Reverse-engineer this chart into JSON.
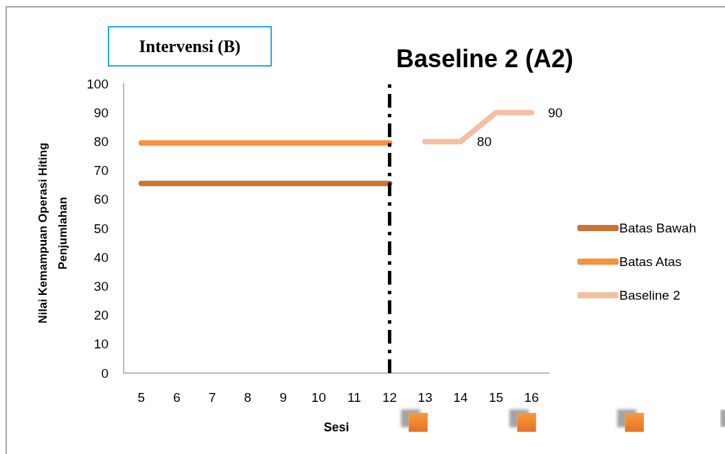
{
  "chart_data": {
    "type": "line",
    "categories": [
      "5",
      "6",
      "7",
      "8",
      "9",
      "10",
      "11",
      "12",
      "13",
      "14",
      "15",
      "16"
    ],
    "xlabel": "Sesi",
    "ylabel": "Nilai Kemampuan Operasi Hiting Penjumlahan",
    "ylim": [
      0,
      100
    ],
    "yticks": [
      0,
      10,
      20,
      30,
      40,
      50,
      60,
      70,
      80,
      90,
      100
    ],
    "grid": false,
    "legend": "right",
    "marker": "none",
    "line_style": "solid",
    "series": [
      {
        "name": "Batas Bawah",
        "color": "#c97532",
        "values": [
          65.5,
          65.5,
          65.5,
          65.5,
          65.5,
          65.5,
          65.5,
          65.5,
          null,
          null,
          null,
          null
        ]
      },
      {
        "name": "Batas Atas",
        "color": "#f69240",
        "values": [
          79.5,
          79.5,
          79.5,
          79.5,
          79.5,
          79.5,
          79.5,
          79.5,
          null,
          null,
          null,
          null
        ]
      },
      {
        "name": "Baseline 2",
        "color": "#f5bfa2",
        "values": [
          null,
          null,
          null,
          null,
          null,
          null,
          null,
          null,
          80,
          80,
          90,
          90
        ],
        "value_labels": [
          null,
          null,
          null,
          null,
          null,
          null,
          null,
          null,
          null,
          "80",
          null,
          "90"
        ]
      }
    ],
    "ref_lines": [
      {
        "axis": "x",
        "value": "12",
        "color": "#000000",
        "line_style": "dashed"
      }
    ],
    "annotations": [
      "Intervensi (B)",
      "Baseline 2 (A2)"
    ]
  }
}
